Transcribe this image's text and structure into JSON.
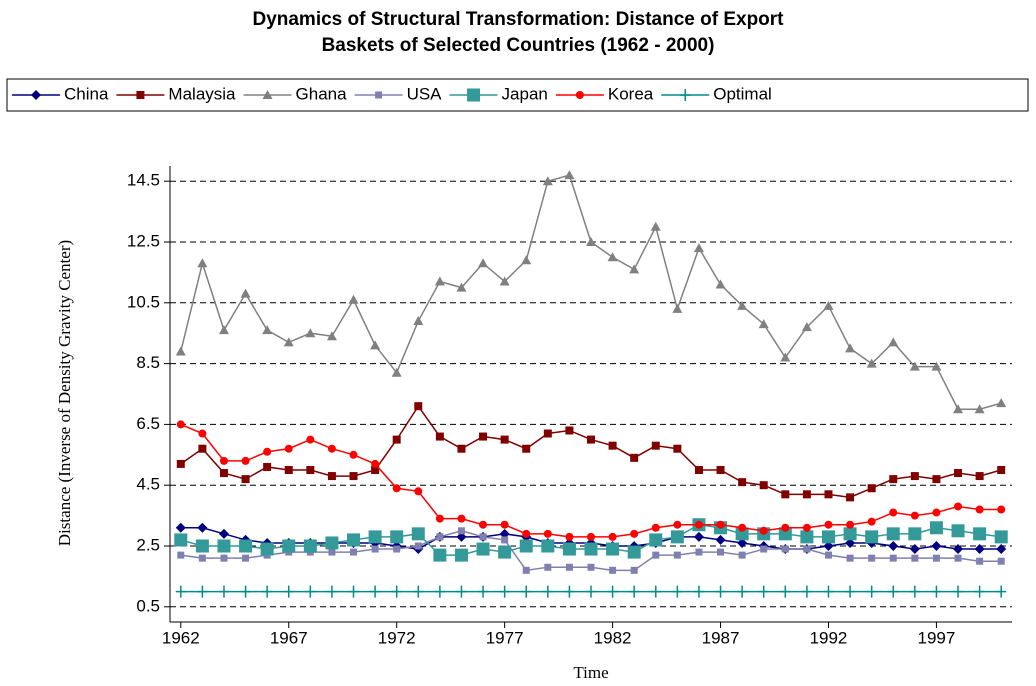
{
  "chart_data": {
    "type": "line",
    "title": [
      "Dynamics of Structural Transformation: Distance of Export",
      "Baskets of Selected Countries (1962 - 2000)"
    ],
    "x_label": "Time",
    "y_label": "Distance (Inverse of Density Gravity Center)",
    "x": [
      1962,
      1963,
      1964,
      1965,
      1966,
      1967,
      1968,
      1969,
      1970,
      1971,
      1972,
      1973,
      1974,
      1975,
      1976,
      1977,
      1978,
      1979,
      1980,
      1981,
      1982,
      1983,
      1984,
      1985,
      1986,
      1987,
      1988,
      1989,
      1990,
      1991,
      1992,
      1993,
      1994,
      1995,
      1996,
      1997,
      1998,
      1999,
      2000
    ],
    "xlim": [
      1961.5,
      2000.5
    ],
    "xticks": [
      1962,
      1967,
      1972,
      1977,
      1982,
      1987,
      1992,
      1997
    ],
    "ylim": [
      0,
      15
    ],
    "yticks": [
      0.5,
      2.5,
      4.5,
      6.5,
      8.5,
      10.5,
      12.5,
      14.5
    ],
    "grid": true,
    "legend": "top",
    "series": [
      {
        "name": "China",
        "color": "#000080",
        "marker": "diamond",
        "values": [
          3.1,
          3.1,
          2.9,
          2.7,
          2.6,
          2.6,
          2.6,
          2.6,
          2.6,
          2.6,
          2.5,
          2.4,
          2.8,
          2.8,
          2.8,
          2.9,
          2.8,
          2.6,
          2.6,
          2.6,
          2.5,
          2.5,
          2.6,
          2.8,
          2.8,
          2.7,
          2.6,
          2.5,
          2.4,
          2.4,
          2.5,
          2.6,
          2.6,
          2.5,
          2.4,
          2.5,
          2.4,
          2.4,
          2.4
        ]
      },
      {
        "name": "Malaysia",
        "color": "#800000",
        "marker": "square",
        "values": [
          5.2,
          5.7,
          4.9,
          4.7,
          5.1,
          5.0,
          5.0,
          4.8,
          4.8,
          5.0,
          6.0,
          7.1,
          6.1,
          5.7,
          6.1,
          6.0,
          5.7,
          6.2,
          6.3,
          6.0,
          5.8,
          5.4,
          5.8,
          5.7,
          5.0,
          5.0,
          4.6,
          4.5,
          4.2,
          4.2,
          4.2,
          4.1,
          4.4,
          4.7,
          4.8,
          4.7,
          4.9,
          4.8,
          5.0
        ]
      },
      {
        "name": "Ghana",
        "color": "#808080",
        "marker": "triangle",
        "values": [
          8.9,
          11.8,
          9.6,
          10.8,
          9.6,
          9.2,
          9.5,
          9.4,
          10.6,
          9.1,
          8.2,
          9.9,
          11.2,
          11.0,
          11.8,
          11.2,
          11.9,
          14.5,
          14.7,
          12.5,
          12.0,
          11.6,
          13.0,
          10.3,
          12.3,
          11.1,
          10.4,
          9.8,
          8.7,
          9.7,
          10.4,
          9.0,
          8.5,
          9.2,
          8.4,
          8.4,
          7.0,
          7.0,
          7.2
        ]
      },
      {
        "name": "USA",
        "color": "#8080b0",
        "marker": "small-square",
        "values": [
          2.2,
          2.1,
          2.1,
          2.1,
          2.2,
          2.3,
          2.3,
          2.3,
          2.3,
          2.4,
          2.4,
          2.5,
          2.8,
          3.0,
          2.8,
          2.7,
          1.7,
          1.8,
          1.8,
          1.8,
          1.7,
          1.7,
          2.2,
          2.2,
          2.3,
          2.3,
          2.2,
          2.4,
          2.4,
          2.4,
          2.2,
          2.1,
          2.1,
          2.1,
          2.1,
          2.1,
          2.1,
          2.0,
          2.0
        ]
      },
      {
        "name": "Japan",
        "color": "#339999",
        "marker": "big-square",
        "values": [
          2.7,
          2.5,
          2.5,
          2.5,
          2.4,
          2.5,
          2.5,
          2.6,
          2.7,
          2.8,
          2.8,
          2.9,
          2.2,
          2.2,
          2.4,
          2.3,
          2.5,
          2.5,
          2.4,
          2.4,
          2.4,
          2.3,
          2.7,
          2.8,
          3.2,
          3.1,
          2.9,
          2.9,
          2.9,
          2.8,
          2.8,
          2.9,
          2.8,
          2.9,
          2.9,
          3.1,
          3.0,
          2.9,
          2.8
        ]
      },
      {
        "name": "Korea",
        "color": "#ff0000",
        "marker": "circle",
        "values": [
          6.5,
          6.2,
          5.3,
          5.3,
          5.6,
          5.7,
          6.0,
          5.7,
          5.5,
          5.2,
          4.4,
          4.3,
          3.4,
          3.4,
          3.2,
          3.2,
          2.9,
          2.9,
          2.8,
          2.8,
          2.8,
          2.9,
          3.1,
          3.2,
          3.2,
          3.2,
          3.1,
          3.0,
          3.1,
          3.1,
          3.2,
          3.2,
          3.3,
          3.6,
          3.5,
          3.6,
          3.8,
          3.7,
          3.7
        ]
      },
      {
        "name": "Optimal",
        "color": "#008b8b",
        "marker": "plus",
        "values": [
          1,
          1,
          1,
          1,
          1,
          1,
          1,
          1,
          1,
          1,
          1,
          1,
          1,
          1,
          1,
          1,
          1,
          1,
          1,
          1,
          1,
          1,
          1,
          1,
          1,
          1,
          1,
          1,
          1,
          1,
          1,
          1,
          1,
          1,
          1,
          1,
          1,
          1,
          1
        ]
      }
    ]
  }
}
